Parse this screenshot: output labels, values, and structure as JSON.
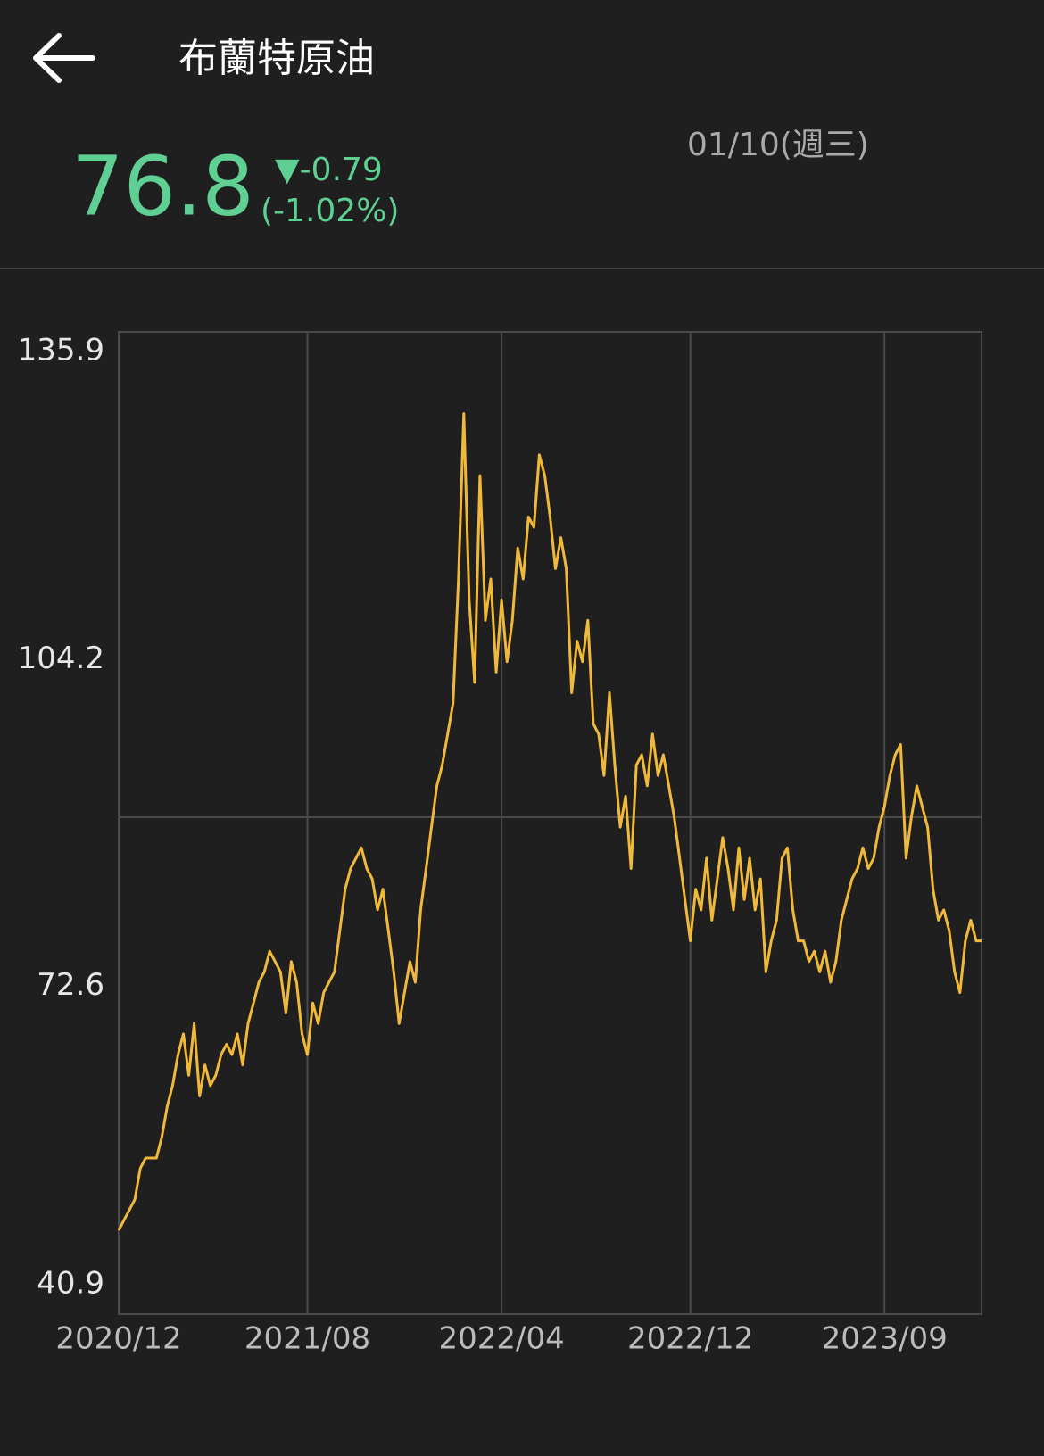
{
  "header": {
    "title": "布蘭特原油"
  },
  "quote": {
    "price": "76.8",
    "change": "▼-0.79",
    "change_percent": "(-1.02%)",
    "date": "01/10(週三)"
  },
  "chart_data": {
    "type": "line",
    "values": [
      49,
      50,
      51,
      52,
      55,
      56,
      56,
      56,
      58,
      61,
      63,
      66,
      68,
      64,
      69,
      62,
      65,
      63,
      64,
      66,
      67,
      66,
      68,
      65,
      69,
      71,
      73,
      74,
      76,
      75,
      74,
      70,
      75,
      73,
      68,
      66,
      71,
      69,
      72,
      73,
      74,
      78,
      82,
      84,
      85,
      86,
      84,
      83,
      80,
      82,
      78,
      74,
      69,
      72,
      75,
      73,
      80,
      84,
      88,
      92,
      94,
      97,
      100,
      112,
      128,
      110,
      102,
      122,
      108,
      112,
      103,
      110,
      104,
      108,
      115,
      112,
      118,
      117,
      124,
      122,
      118,
      113,
      116,
      113,
      101,
      106,
      104,
      108,
      98,
      97,
      93,
      101,
      94,
      88,
      91,
      84,
      94,
      95,
      92,
      97,
      93,
      95,
      92,
      89,
      85,
      81,
      77,
      82,
      80,
      85,
      79,
      83,
      87,
      84,
      80,
      86,
      81,
      85,
      80,
      83,
      74,
      77,
      79,
      85,
      86,
      80,
      77,
      77,
      75,
      76,
      74,
      76,
      73,
      75,
      79,
      81,
      83,
      84,
      86,
      84,
      85,
      88,
      90,
      93,
      95,
      96,
      85,
      89,
      92,
      90,
      88,
      82,
      79,
      80,
      78,
      74,
      72,
      77,
      79,
      77,
      77
    ],
    "color": "#f0b93a",
    "xlim": [
      0,
      160
    ],
    "xticks": [
      {
        "value": 0,
        "label": "2020/12"
      },
      {
        "value": 35,
        "label": "2021/08"
      },
      {
        "value": 71,
        "label": "2022/04"
      },
      {
        "value": 106,
        "label": "2022/12"
      },
      {
        "value": 142,
        "label": "2023/09"
      }
    ],
    "ylim": [
      40.9,
      135.9
    ],
    "yticks": [
      135.9,
      104.2,
      72.6,
      40.9
    ],
    "grid": true
  }
}
